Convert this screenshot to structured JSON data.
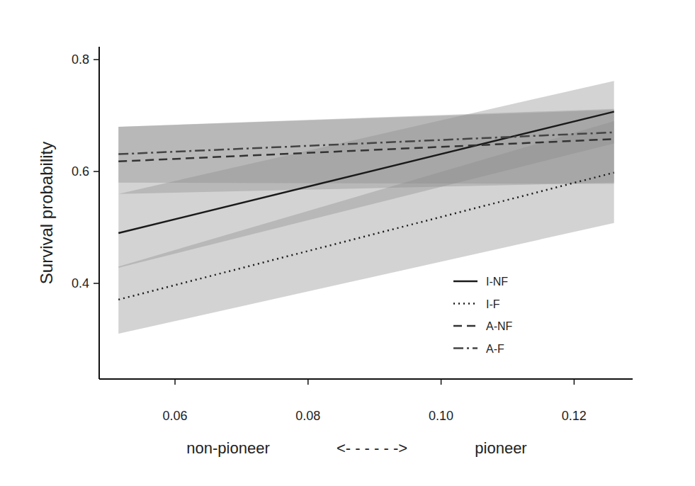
{
  "chart_data": {
    "type": "line",
    "ylabel": "Survival probability",
    "xlabel": [
      "non-pioneer",
      "<- - - - - ->",
      "pioneer"
    ],
    "x": [
      0.0515,
      0.126
    ],
    "xlim": [
      0.0486,
      0.1288
    ],
    "ylim": [
      0.229,
      0.823
    ],
    "xticks": [
      0.06,
      0.08,
      {
        "value": 0.1,
        "label": "0.10"
      },
      0.12
    ],
    "yticks": [
      0.4,
      0.6,
      0.8
    ],
    "grid": false,
    "legend": "lower right",
    "series": [
      {
        "name": "I-NF",
        "color": "#1a1a1a",
        "line_style": "solid",
        "values": [
          0.49,
          0.707
        ],
        "lower": [
          0.428,
          0.65
        ],
        "upper": [
          0.56,
          0.762
        ]
      },
      {
        "name": "I-F",
        "color": "#1a1a1a",
        "line_style": "dotted",
        "values": [
          0.371,
          0.598
        ],
        "lower": [
          0.31,
          0.508
        ],
        "upper": [
          0.43,
          0.69
        ]
      },
      {
        "name": "A-NF",
        "color": "#333333",
        "line_style": "dashed",
        "values": [
          0.618,
          0.658
        ],
        "lower": [
          0.56,
          0.58
        ],
        "upper": [
          0.68,
          0.71
        ]
      },
      {
        "name": "A-F",
        "color": "#444444",
        "line_style": "dashdot",
        "values": [
          0.631,
          0.67
        ],
        "lower": [
          0.58,
          0.578
        ],
        "upper": [
          0.68,
          0.712
        ]
      }
    ]
  }
}
